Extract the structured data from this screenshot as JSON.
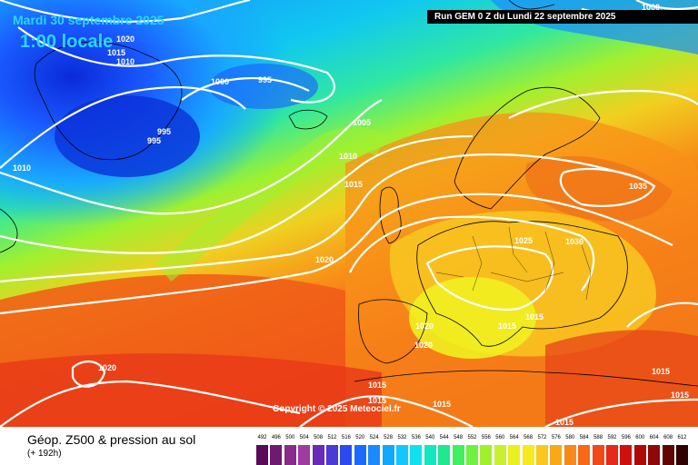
{
  "header": {
    "date": "Mardi 30 septembre 2025",
    "time": "1:00 locale",
    "run": "Run GEM 0 Z du Lundi 22 septembre 2025"
  },
  "copyright": "Copyright © 2025 Meteociel.fr",
  "footer": {
    "title": "Géop. Z500 & pression au sol",
    "subtitle": "(+ 192h)"
  },
  "scale": {
    "values": [
      "492",
      "496",
      "500",
      "504",
      "508",
      "512",
      "516",
      "520",
      "524",
      "528",
      "532",
      "536",
      "540",
      "544",
      "548",
      "552",
      "556",
      "560",
      "564",
      "568",
      "572",
      "576",
      "580",
      "584",
      "588",
      "592",
      "596",
      "600",
      "604",
      "608",
      "612"
    ],
    "colors": [
      "#5a0a5a",
      "#6e1a6e",
      "#8a2a8a",
      "#a03aa0",
      "#6a2ab8",
      "#4a3ad8",
      "#2a4af0",
      "#1a6aff",
      "#1a8aff",
      "#10a8ff",
      "#10c8ff",
      "#10e0f0",
      "#10e8c0",
      "#20e890",
      "#40f060",
      "#70f040",
      "#a0f030",
      "#c8f030",
      "#e8f020",
      "#f8e820",
      "#f8c820",
      "#f8a818",
      "#f88818",
      "#f86818",
      "#f04818",
      "#e82818",
      "#d01010",
      "#b00808",
      "#900808",
      "#600404",
      "#300000"
    ]
  },
  "isobars": [
    "1020",
    "1015",
    "1010",
    "1000",
    "995",
    "995",
    "995",
    "1010",
    "1005",
    "1010",
    "1015",
    "1020",
    "1025",
    "1030",
    "1035",
    "1015",
    "1015",
    "1020",
    "1020",
    "1015",
    "1015",
    "1015",
    "1015",
    "1015",
    "1000",
    "1020",
    "1015",
    "1020",
    "1015",
    "1015"
  ]
}
